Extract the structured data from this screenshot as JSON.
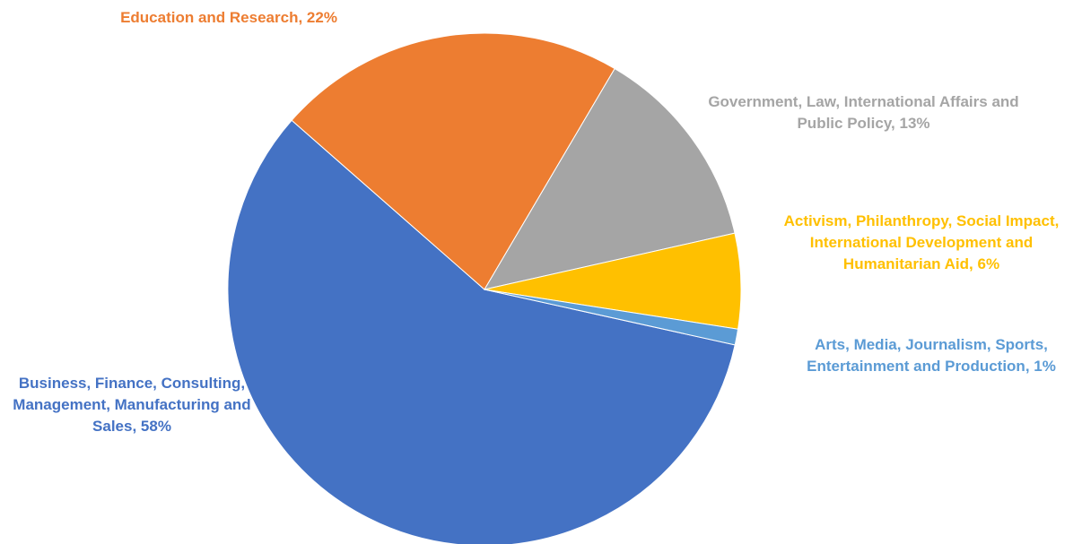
{
  "chart_data": {
    "type": "pie",
    "title": "",
    "slices": [
      {
        "label": "Business, Finance, Consulting, Management, Manufacturing and Sales",
        "value": 58,
        "display": "58%",
        "color": "#4472C4"
      },
      {
        "label": "Education and Research",
        "value": 22,
        "display": "22%",
        "color": "#ED7D31"
      },
      {
        "label": "Government, Law, International Affairs and Public Policy",
        "value": 13,
        "display": "13%",
        "color": "#A5A5A5"
      },
      {
        "label": "Activism, Philanthropy, Social Impact, International Development and Humanitarian Aid",
        "value": 6,
        "display": "6%",
        "color": "#FFC000"
      },
      {
        "label": "Arts, Media, Journalism, Sports, Entertainment and Production",
        "value": 1,
        "display": "1%",
        "color": "#5B9BD5"
      }
    ],
    "legend": false
  }
}
